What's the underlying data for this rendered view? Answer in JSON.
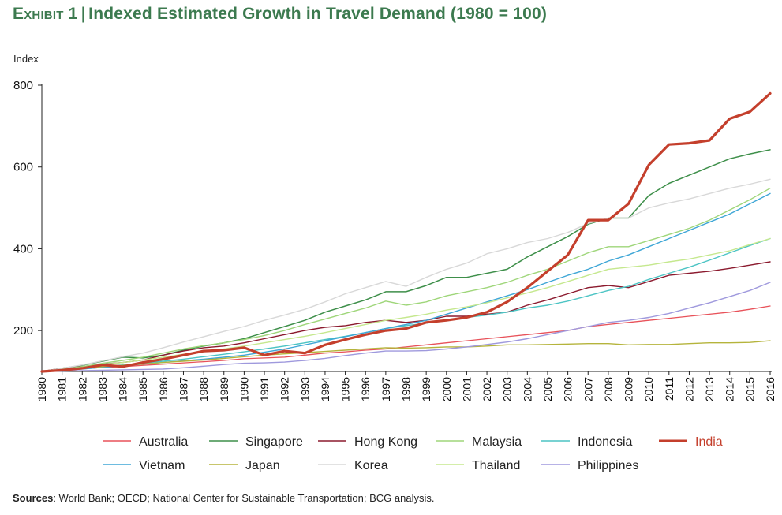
{
  "header": {
    "exhibit": "Exhibit 1",
    "title": "Indexed Estimated Growth in Travel Demand (1980 = 100)"
  },
  "footer": {
    "sources_label": "Sources",
    "sources_text": ": World Bank; OECD; National Center for Sustainable Transportation; BCG analysis."
  },
  "chart_data": {
    "type": "line",
    "title": "Indexed Estimated Growth in Travel Demand (1980 = 100)",
    "ylabel": "Index",
    "xlabel": "",
    "ylim": [
      100,
      800
    ],
    "yticks": [
      200,
      400,
      600,
      800
    ],
    "grid": false,
    "legend_position": "bottom",
    "x": [
      "1980",
      "1981",
      "1982",
      "1983",
      "1984",
      "1985",
      "1986",
      "1987",
      "1988",
      "1989",
      "1990",
      "1991",
      "1992",
      "1993",
      "1994",
      "1995",
      "1996",
      "1997",
      "1998",
      "1999",
      "2000",
      "2001",
      "2002",
      "2003",
      "2004",
      "2005",
      "2006",
      "2007",
      "2008",
      "2009",
      "2010",
      "2011",
      "2012",
      "2013",
      "2014",
      "2015",
      "2016"
    ],
    "series": [
      {
        "name": "Australia",
        "color": "#e8525a",
        "width": 1.3,
        "values": [
          100,
          103,
          106,
          110,
          112,
          115,
          118,
          121,
          124,
          127,
          131,
          133,
          135,
          140,
          145,
          148,
          152,
          155,
          160,
          165,
          170,
          175,
          180,
          185,
          190,
          195,
          200,
          210,
          215,
          220,
          225,
          230,
          235,
          240,
          245,
          252,
          260
        ]
      },
      {
        "name": "Singapore",
        "color": "#3e8f4a",
        "width": 1.5,
        "values": [
          100,
          108,
          115,
          125,
          135,
          133,
          140,
          152,
          162,
          170,
          180,
          195,
          210,
          225,
          245,
          260,
          275,
          295,
          295,
          310,
          330,
          330,
          340,
          350,
          380,
          405,
          430,
          460,
          475,
          475,
          530,
          560,
          580,
          600,
          620,
          632,
          642
        ]
      },
      {
        "name": "Hong Kong",
        "color": "#8b1a2e",
        "width": 1.4,
        "values": [
          100,
          108,
          112,
          118,
          122,
          128,
          140,
          150,
          158,
          162,
          170,
          180,
          190,
          200,
          208,
          212,
          220,
          225,
          220,
          225,
          235,
          235,
          240,
          245,
          262,
          275,
          290,
          305,
          310,
          305,
          320,
          335,
          340,
          345,
          352,
          360,
          368
        ]
      },
      {
        "name": "Malaysia",
        "color": "#9fd67a",
        "width": 1.4,
        "values": [
          100,
          106,
          112,
          120,
          127,
          135,
          145,
          155,
          163,
          170,
          178,
          188,
          200,
          215,
          228,
          242,
          255,
          272,
          262,
          270,
          285,
          295,
          305,
          318,
          335,
          350,
          370,
          390,
          405,
          405,
          420,
          435,
          450,
          470,
          495,
          520,
          548
        ]
      },
      {
        "name": "Indonesia",
        "color": "#4cc4c4",
        "width": 1.4,
        "values": [
          100,
          104,
          108,
          112,
          116,
          120,
          125,
          130,
          136,
          142,
          148,
          155,
          162,
          170,
          178,
          186,
          195,
          205,
          212,
          218,
          225,
          232,
          238,
          245,
          255,
          262,
          272,
          285,
          298,
          308,
          325,
          340,
          355,
          372,
          390,
          408,
          425
        ]
      },
      {
        "name": "Vietnam",
        "color": "#3ea6d6",
        "width": 1.4,
        "values": [
          100,
          103,
          106,
          110,
          114,
          118,
          122,
          126,
          130,
          135,
          140,
          147,
          155,
          165,
          175,
          185,
          195,
          205,
          215,
          225,
          240,
          255,
          270,
          285,
          300,
          318,
          335,
          350,
          370,
          385,
          405,
          425,
          445,
          465,
          485,
          510,
          535
        ]
      },
      {
        "name": "Japan",
        "color": "#b5b43c",
        "width": 1.4,
        "values": [
          100,
          104,
          108,
          112,
          115,
          118,
          122,
          125,
          128,
          132,
          136,
          140,
          143,
          146,
          149,
          152,
          155,
          158,
          157,
          158,
          160,
          160,
          162,
          165,
          165,
          166,
          167,
          168,
          168,
          165,
          166,
          166,
          168,
          170,
          170,
          171,
          175
        ]
      },
      {
        "name": "Korea",
        "color": "#d8d8d8",
        "width": 1.4,
        "values": [
          100,
          108,
          116,
          126,
          136,
          145,
          158,
          172,
          185,
          198,
          210,
          225,
          238,
          252,
          270,
          290,
          305,
          320,
          308,
          330,
          350,
          365,
          388,
          400,
          415,
          425,
          440,
          462,
          475,
          475,
          500,
          512,
          522,
          535,
          548,
          558,
          570
        ]
      },
      {
        "name": "Thailand",
        "color": "#c5e88e",
        "width": 1.4,
        "values": [
          100,
          104,
          110,
          117,
          122,
          128,
          135,
          142,
          148,
          155,
          162,
          170,
          178,
          186,
          195,
          205,
          215,
          225,
          232,
          240,
          250,
          258,
          268,
          280,
          292,
          305,
          320,
          335,
          350,
          355,
          360,
          368,
          375,
          385,
          395,
          410,
          425
        ]
      },
      {
        "name": "Philippines",
        "color": "#9f99dd",
        "width": 1.4,
        "values": [
          100,
          101,
          102,
          103,
          104,
          105,
          106,
          109,
          113,
          117,
          120,
          121,
          123,
          127,
          132,
          139,
          145,
          150,
          150,
          151,
          155,
          160,
          166,
          172,
          180,
          190,
          200,
          210,
          220,
          225,
          232,
          242,
          255,
          268,
          283,
          298,
          318
        ]
      },
      {
        "name": "India",
        "color": "#c43f2c",
        "width": 3.2,
        "values": [
          100,
          103,
          108,
          116,
          112,
          122,
          130,
          140,
          150,
          152,
          158,
          140,
          150,
          145,
          165,
          178,
          190,
          200,
          205,
          220,
          225,
          232,
          245,
          270,
          305,
          345,
          385,
          470,
          470,
          510,
          605,
          655,
          658,
          665,
          718,
          735,
          780
        ]
      }
    ]
  }
}
